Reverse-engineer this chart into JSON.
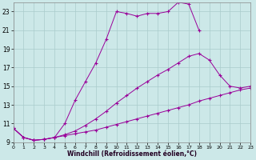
{
  "xlabel": "Windchill (Refroidissement éolien,°C)",
  "bg_color": "#cce8e8",
  "line_color": "#990099",
  "grid_color": "#aacccc",
  "xmin": 0,
  "xmax": 23,
  "ymin": 9,
  "ymax": 24,
  "yticks": [
    9,
    11,
    13,
    15,
    17,
    19,
    21,
    23
  ],
  "xticks": [
    0,
    1,
    2,
    3,
    4,
    5,
    6,
    7,
    8,
    9,
    10,
    11,
    12,
    13,
    14,
    15,
    16,
    17,
    18,
    19,
    20,
    21,
    22,
    23
  ],
  "series": [
    {
      "x": [
        0,
        1,
        2,
        3,
        4,
        5,
        6,
        7,
        8,
        9,
        10,
        11,
        12,
        13,
        14,
        15,
        16,
        17,
        18
      ],
      "y": [
        10.5,
        9.5,
        9.2,
        9.3,
        9.5,
        11.0,
        13.5,
        15.5,
        17.5,
        20.0,
        23.0,
        22.8,
        22.5,
        22.8,
        22.8,
        23.0,
        24.0,
        23.8,
        21.0
      ]
    },
    {
      "x": [
        0,
        1,
        2,
        3,
        4,
        5,
        6,
        7,
        8,
        9,
        10,
        11,
        12,
        13,
        14,
        15,
        16,
        17,
        18,
        19,
        20,
        21,
        22,
        23
      ],
      "y": [
        10.5,
        9.5,
        9.2,
        9.3,
        9.5,
        9.8,
        10.2,
        10.8,
        11.5,
        12.3,
        13.2,
        14.0,
        14.8,
        15.5,
        16.2,
        16.8,
        17.5,
        18.2,
        18.5,
        17.8,
        16.2,
        15.0,
        14.8,
        15.0
      ]
    },
    {
      "x": [
        0,
        1,
        2,
        3,
        4,
        5,
        6,
        7,
        8,
        9,
        10,
        11,
        12,
        13,
        14,
        15,
        16,
        17,
        18,
        19,
        20,
        21,
        22,
        23
      ],
      "y": [
        10.5,
        9.5,
        9.2,
        9.3,
        9.5,
        9.7,
        9.9,
        10.1,
        10.3,
        10.6,
        10.9,
        11.2,
        11.5,
        11.8,
        12.1,
        12.4,
        12.7,
        13.0,
        13.4,
        13.7,
        14.0,
        14.3,
        14.6,
        14.8
      ]
    }
  ]
}
